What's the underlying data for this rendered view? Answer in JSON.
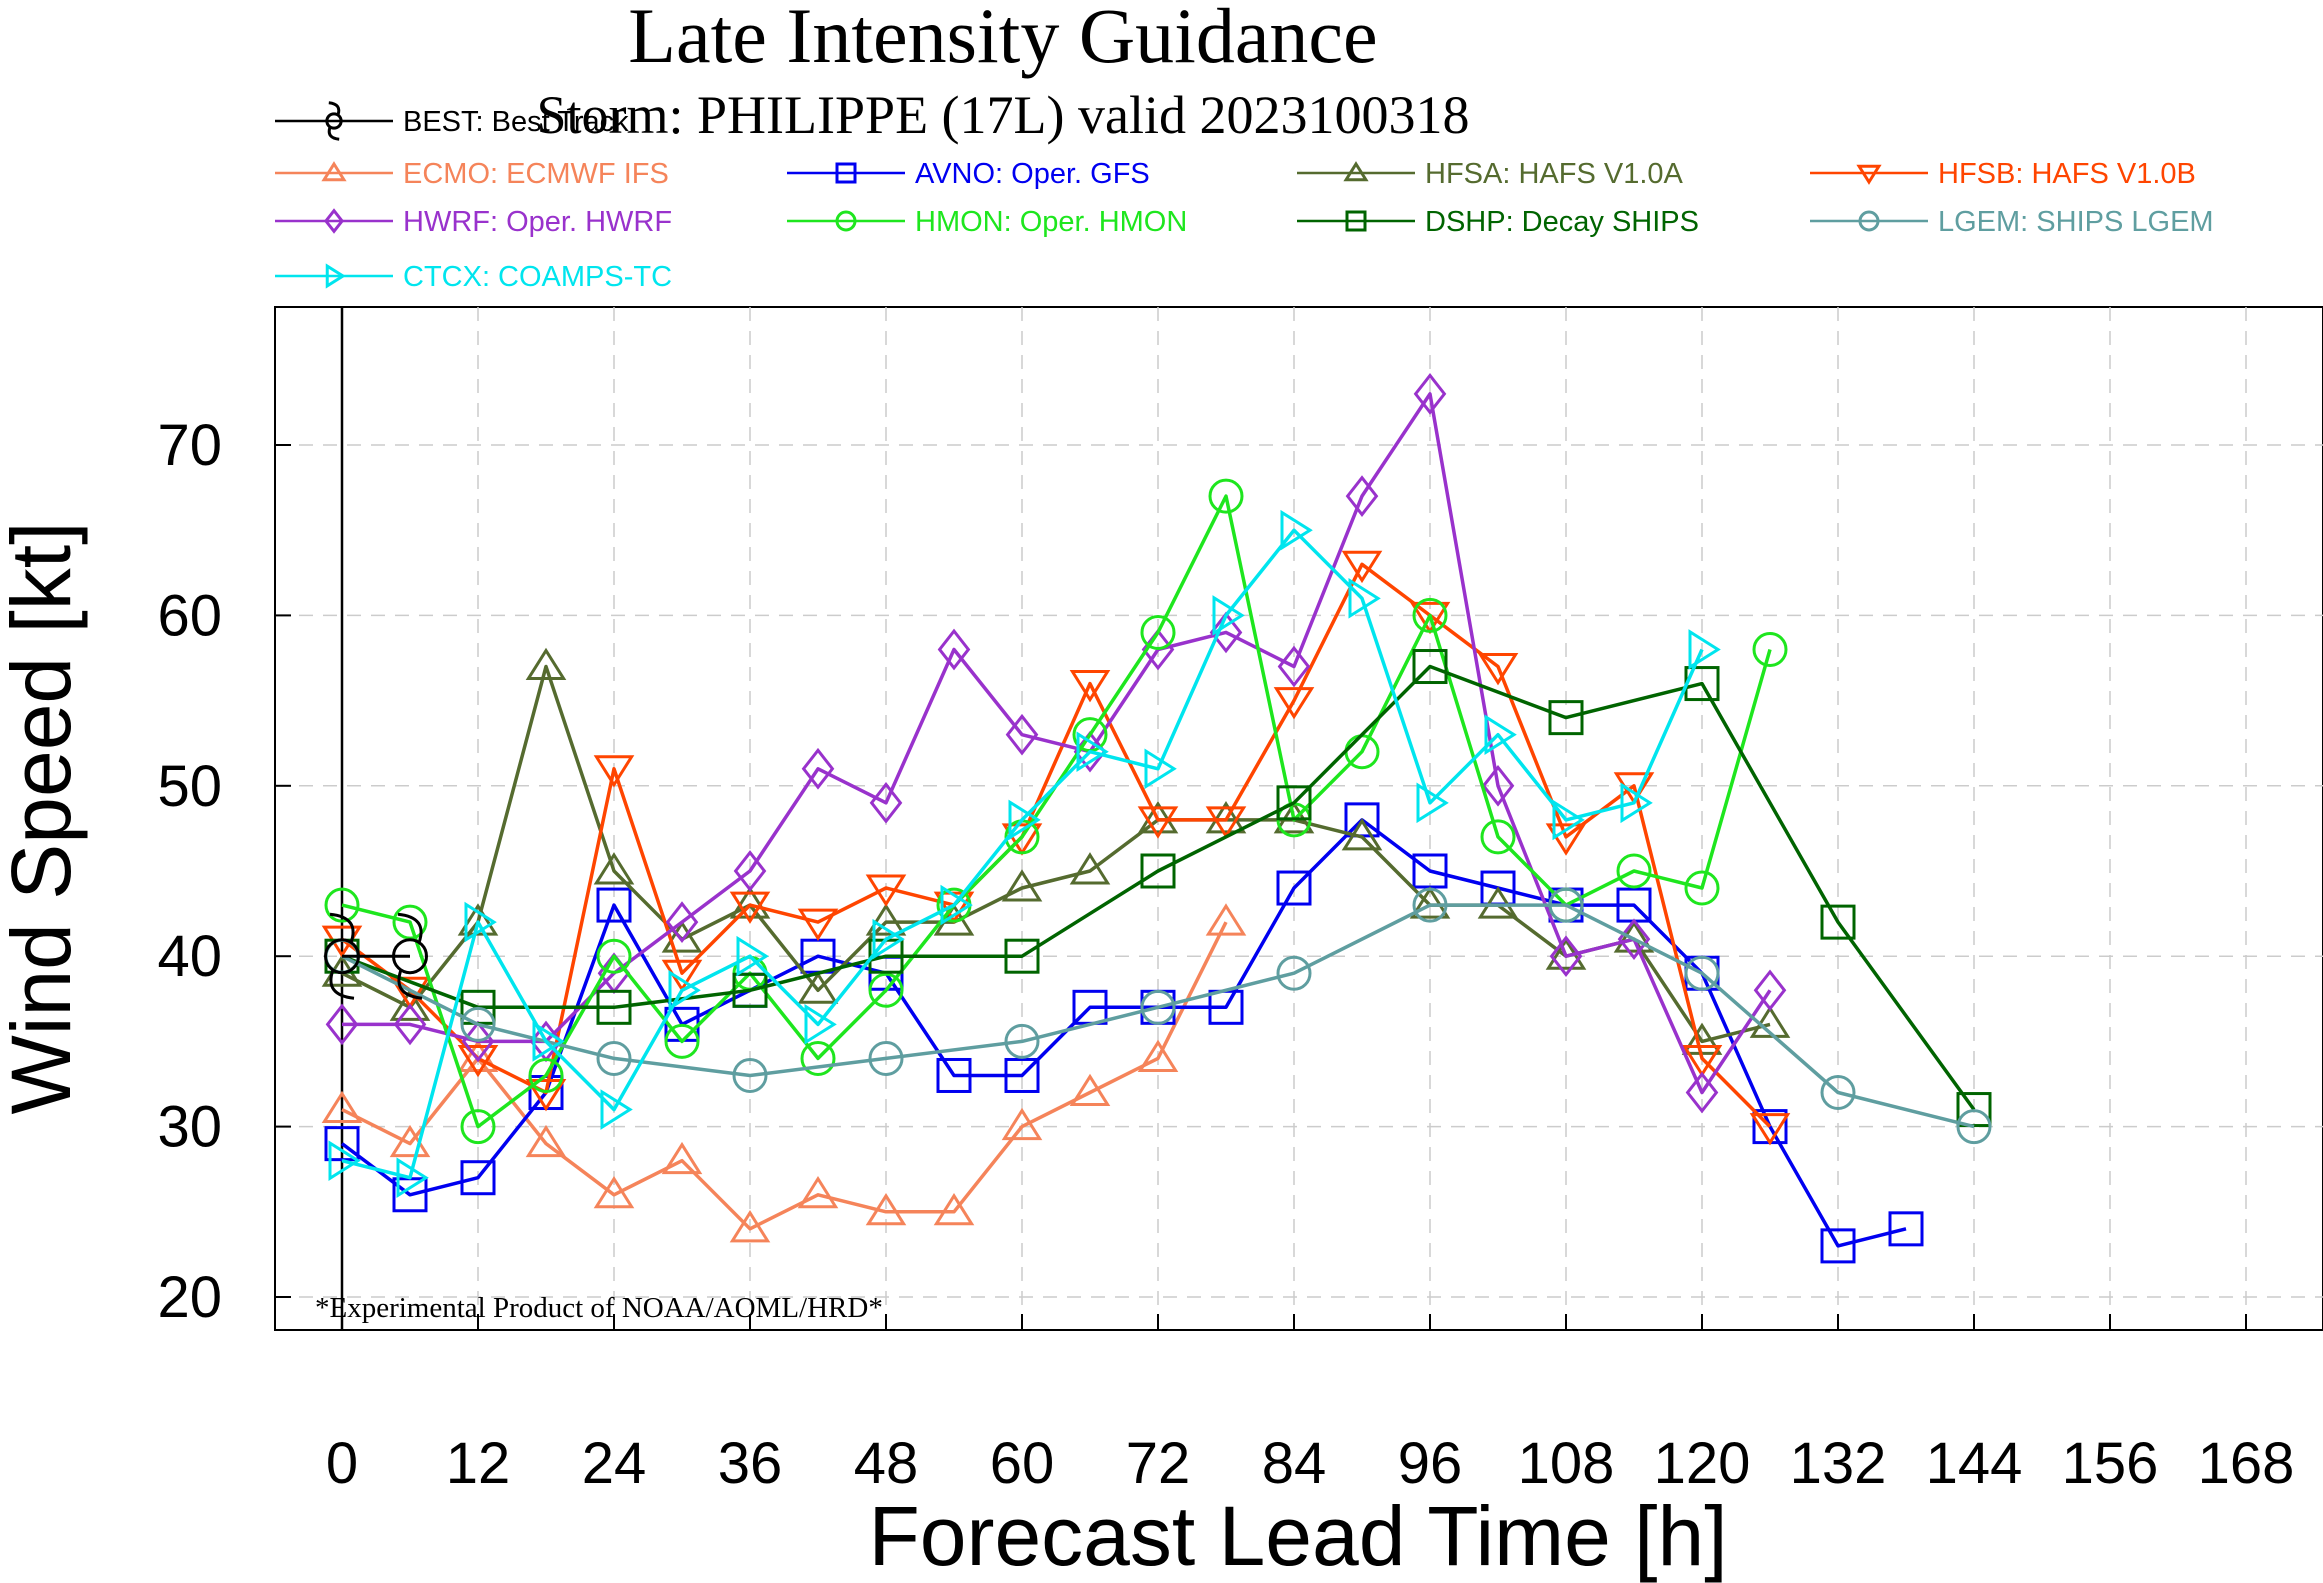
{
  "chart_data": {
    "type": "line",
    "title": "Late Intensity Guidance",
    "subtitle": "Storm: PHILIPPE (17L) valid 2023100318",
    "xlabel": "Forecast Lead Time [h]",
    "ylabel": "Wind Speed [kt]",
    "footnote": "*Experimental Product of NOAA/AOML/HRD*",
    "xlim": [
      -12,
      174
    ],
    "ylim": [
      18,
      78
    ],
    "xticks": [
      0,
      12,
      24,
      36,
      48,
      60,
      72,
      84,
      96,
      108,
      120,
      132,
      144,
      156,
      168
    ],
    "yticks": [
      20,
      30,
      40,
      50,
      60,
      70
    ],
    "grid": true,
    "legend_position": "top",
    "best_track": {
      "name": "BEST: Best Track",
      "color": "#000000",
      "marker": "hurricane-symbol",
      "x": [
        0,
        6
      ],
      "y": [
        40,
        40
      ]
    },
    "series": [
      {
        "name": "ECMO: ECMWF IFS",
        "color": "#f5845a",
        "marker": "triangle-up",
        "x": [
          0,
          6,
          12,
          18,
          24,
          30,
          36,
          42,
          48,
          54,
          60,
          66,
          72,
          78
        ],
        "y": [
          31,
          29,
          34,
          29,
          26,
          28,
          24,
          26,
          25,
          25,
          30,
          32,
          34,
          42
        ]
      },
      {
        "name": "AVNO: Oper. GFS",
        "color": "#0000f0",
        "marker": "square",
        "x": [
          0,
          6,
          12,
          18,
          24,
          30,
          36,
          42,
          48,
          54,
          60,
          66,
          72,
          78,
          84,
          90,
          96,
          102,
          108,
          114,
          120,
          126,
          132,
          138
        ],
        "y": [
          29,
          26,
          27,
          32,
          43,
          36,
          38,
          40,
          39,
          33,
          33,
          37,
          37,
          37,
          44,
          48,
          45,
          44,
          43,
          43,
          39,
          30,
          23,
          24
        ]
      },
      {
        "name": "HFSA: HAFS V1.0A",
        "color": "#556b2f",
        "marker": "triangle-up",
        "x": [
          0,
          6,
          12,
          18,
          24,
          30,
          36,
          42,
          48,
          54,
          60,
          66,
          72,
          78,
          84,
          90,
          96,
          102,
          108,
          114,
          120,
          126
        ],
        "y": [
          39,
          37,
          42,
          57,
          45,
          41,
          43,
          38,
          42,
          42,
          44,
          45,
          48,
          48,
          48,
          47,
          43,
          43,
          40,
          41,
          35,
          36
        ]
      },
      {
        "name": "HFSB: HAFS V1.0B",
        "color": "#ff4500",
        "marker": "triangle-down",
        "x": [
          0,
          6,
          12,
          18,
          24,
          30,
          36,
          42,
          48,
          54,
          60,
          66,
          72,
          78,
          84,
          90,
          96,
          102,
          108,
          114,
          120,
          126
        ],
        "y": [
          41,
          38,
          34,
          32,
          51,
          39,
          43,
          42,
          44,
          43,
          47,
          56,
          48,
          48,
          55,
          63,
          60,
          57,
          47,
          50,
          34,
          30
        ]
      },
      {
        "name": "HWRF: Oper. HWRF",
        "color": "#9932cc",
        "marker": "diamond",
        "x": [
          0,
          6,
          12,
          18,
          24,
          30,
          36,
          42,
          48,
          54,
          60,
          66,
          72,
          78,
          84,
          90,
          96,
          102,
          108,
          114,
          120,
          126
        ],
        "y": [
          36,
          36,
          35,
          35,
          39,
          42,
          45,
          51,
          49,
          58,
          53,
          52,
          58,
          59,
          57,
          67,
          73,
          50,
          40,
          41,
          32,
          38
        ]
      },
      {
        "name": "HMON: Oper. HMON",
        "color": "#1ee61e",
        "marker": "circle",
        "x": [
          0,
          6,
          12,
          18,
          24,
          30,
          36,
          42,
          48,
          54,
          60,
          66,
          72,
          78,
          84,
          90,
          96,
          102,
          108,
          114,
          120,
          126
        ],
        "y": [
          43,
          42,
          30,
          33,
          40,
          35,
          39,
          34,
          38,
          43,
          47,
          53,
          59,
          67,
          48,
          52,
          60,
          47,
          43,
          45,
          44,
          58
        ]
      },
      {
        "name": "DSHP: Decay SHIPS",
        "color": "#006400",
        "marker": "square",
        "x": [
          0,
          12,
          24,
          36,
          48,
          60,
          72,
          84,
          96,
          108,
          120,
          132,
          144
        ],
        "y": [
          40,
          37,
          37,
          38,
          40,
          40,
          45,
          49,
          57,
          54,
          56,
          42,
          31
        ]
      },
      {
        "name": "LGEM: SHIPS LGEM",
        "color": "#5f9ea0",
        "marker": "circle",
        "x": [
          0,
          12,
          24,
          36,
          48,
          60,
          72,
          84,
          96,
          108,
          120,
          132,
          144
        ],
        "y": [
          40,
          36,
          34,
          33,
          34,
          35,
          37,
          39,
          43,
          43,
          39,
          32,
          30
        ]
      },
      {
        "name": "CTCX: COAMPS-TC",
        "color": "#00e5ee",
        "marker": "triangle-right",
        "x": [
          0,
          6,
          12,
          18,
          24,
          30,
          36,
          42,
          48,
          54,
          60,
          66,
          72,
          78,
          84,
          90,
          96,
          102,
          108,
          114,
          120
        ],
        "y": [
          28,
          27,
          42,
          35,
          31,
          38,
          40,
          36,
          41,
          43,
          48,
          52,
          51,
          60,
          65,
          61,
          49,
          53,
          48,
          49,
          58
        ]
      }
    ]
  }
}
